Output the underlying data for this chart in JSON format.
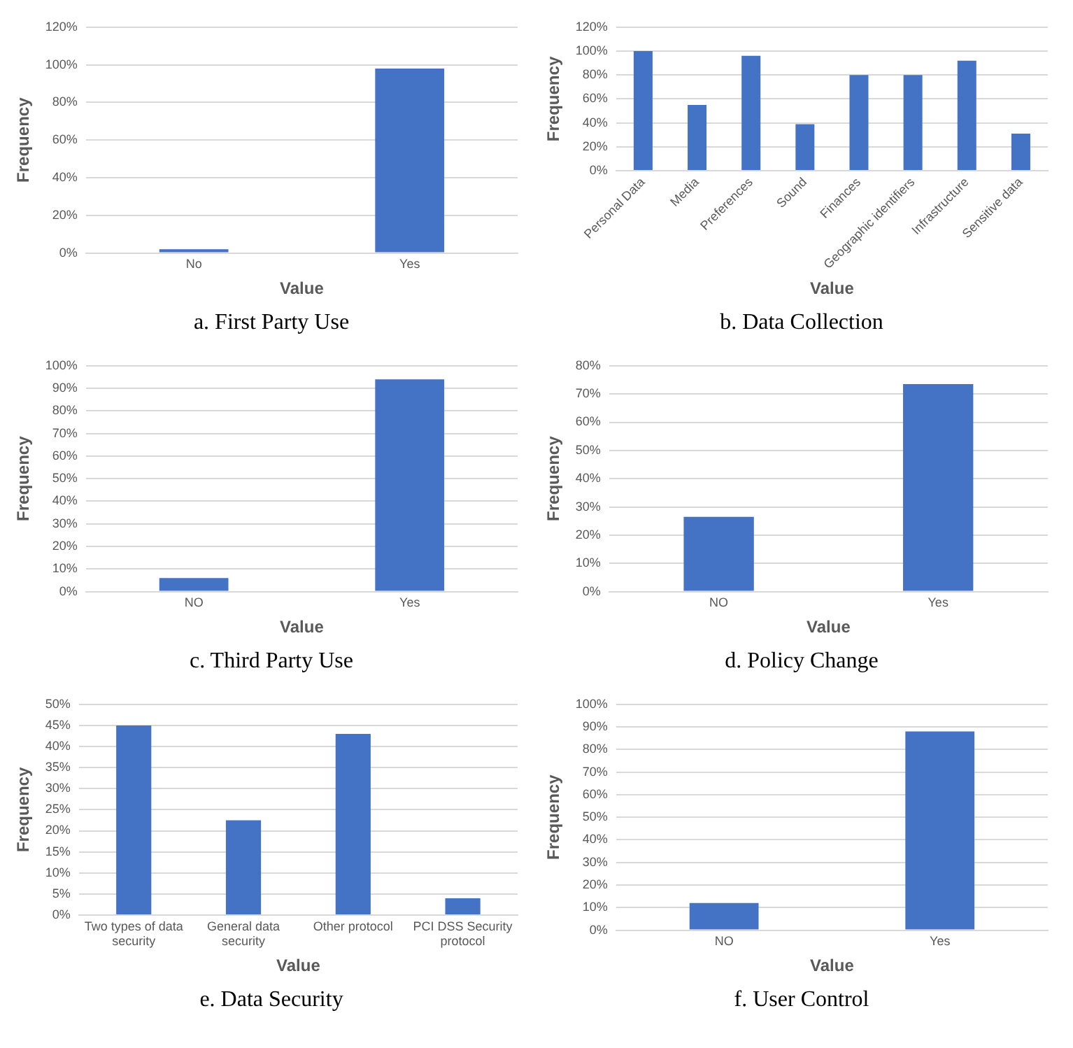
{
  "chart_data": [
    {
      "type": "bar",
      "title": "a. First Party Use",
      "xlabel": "Value",
      "ylabel": "Frequency",
      "categories": [
        "No",
        "Yes"
      ],
      "values": [
        2,
        98
      ],
      "color": "#4472c4",
      "ylim": [
        0,
        120
      ],
      "yticks": [
        {
          "value": 0,
          "label": "0%"
        },
        {
          "value": 20,
          "label": "20%"
        },
        {
          "value": 40,
          "label": "40%"
        },
        {
          "value": 60,
          "label": "60%"
        },
        {
          "value": 80,
          "label": "80%"
        },
        {
          "value": 100,
          "label": "100%"
        },
        {
          "value": 120,
          "label": "120%"
        }
      ],
      "grid": "y"
    },
    {
      "type": "bar",
      "title": "b. Data Collection",
      "xlabel": "Value",
      "ylabel": "Frequency",
      "categories": [
        "Personal Data",
        "Media",
        "Preferences",
        "Sound",
        "Finances",
        "Geographic identifiers",
        "Infrastructure",
        "Sensitive data"
      ],
      "values": [
        100,
        55,
        96,
        39,
        80,
        80,
        92,
        31
      ],
      "color": "#4472c4",
      "ylim": [
        0,
        120
      ],
      "yticks": [
        {
          "value": 0,
          "label": "0%"
        },
        {
          "value": 20,
          "label": "20%"
        },
        {
          "value": 40,
          "label": "40%"
        },
        {
          "value": 60,
          "label": "60%"
        },
        {
          "value": 80,
          "label": "80%"
        },
        {
          "value": 100,
          "label": "100%"
        },
        {
          "value": 120,
          "label": "120%"
        }
      ],
      "grid": "y"
    },
    {
      "type": "bar",
      "title": "c. Third Party Use",
      "xlabel": "Value",
      "ylabel": "Frequency",
      "categories": [
        "NO",
        "Yes"
      ],
      "values": [
        6,
        94
      ],
      "color": "#4472c4",
      "ylim": [
        0,
        100
      ],
      "yticks": [
        {
          "value": 0,
          "label": "0%"
        },
        {
          "value": 10,
          "label": "10%"
        },
        {
          "value": 20,
          "label": "20%"
        },
        {
          "value": 30,
          "label": "30%"
        },
        {
          "value": 40,
          "label": "40%"
        },
        {
          "value": 50,
          "label": "50%"
        },
        {
          "value": 60,
          "label": "60%"
        },
        {
          "value": 70,
          "label": "70%"
        },
        {
          "value": 80,
          "label": "80%"
        },
        {
          "value": 90,
          "label": "90%"
        },
        {
          "value": 100,
          "label": "100%"
        }
      ],
      "grid": "y"
    },
    {
      "type": "bar",
      "title": "d. Policy Change",
      "xlabel": "Value",
      "ylabel": "Frequency",
      "categories": [
        "NO",
        "Yes"
      ],
      "values": [
        26.5,
        73.5
      ],
      "color": "#4472c4",
      "ylim": [
        0,
        80
      ],
      "yticks": [
        {
          "value": 0,
          "label": "0%"
        },
        {
          "value": 10,
          "label": "10%"
        },
        {
          "value": 20,
          "label": "20%"
        },
        {
          "value": 30,
          "label": "30%"
        },
        {
          "value": 40,
          "label": "40%"
        },
        {
          "value": 50,
          "label": "50%"
        },
        {
          "value": 60,
          "label": "60%"
        },
        {
          "value": 70,
          "label": "70%"
        },
        {
          "value": 80,
          "label": "80%"
        }
      ],
      "grid": "y"
    },
    {
      "type": "bar",
      "title": "e. Data Security",
      "xlabel": "Value",
      "ylabel": "Frequency",
      "categories": [
        "Two types of data security",
        "General data security",
        "Other protocol",
        "PCI DSS Security protocol"
      ],
      "values": [
        45,
        22.5,
        43,
        4
      ],
      "color": "#4472c4",
      "ylim": [
        0,
        50
      ],
      "yticks": [
        {
          "value": 0,
          "label": "0%"
        },
        {
          "value": 5,
          "label": "5%"
        },
        {
          "value": 10,
          "label": "10%"
        },
        {
          "value": 15,
          "label": "15%"
        },
        {
          "value": 20,
          "label": "20%"
        },
        {
          "value": 25,
          "label": "25%"
        },
        {
          "value": 30,
          "label": "30%"
        },
        {
          "value": 35,
          "label": "35%"
        },
        {
          "value": 40,
          "label": "40%"
        },
        {
          "value": 45,
          "label": "45%"
        },
        {
          "value": 50,
          "label": "50%"
        }
      ],
      "grid": "y"
    },
    {
      "type": "bar",
      "title": "f. User Control",
      "xlabel": "Value",
      "ylabel": "Frequency",
      "categories": [
        "NO",
        "Yes"
      ],
      "values": [
        12,
        88
      ],
      "color": "#4472c4",
      "ylim": [
        0,
        100
      ],
      "yticks": [
        {
          "value": 0,
          "label": "0%"
        },
        {
          "value": 10,
          "label": "10%"
        },
        {
          "value": 20,
          "label": "20%"
        },
        {
          "value": 30,
          "label": "30%"
        },
        {
          "value": 40,
          "label": "40%"
        },
        {
          "value": 50,
          "label": "50%"
        },
        {
          "value": 60,
          "label": "60%"
        },
        {
          "value": 70,
          "label": "70%"
        },
        {
          "value": 80,
          "label": "80%"
        },
        {
          "value": 90,
          "label": "90%"
        },
        {
          "value": 100,
          "label": "100%"
        }
      ],
      "grid": "y"
    }
  ]
}
